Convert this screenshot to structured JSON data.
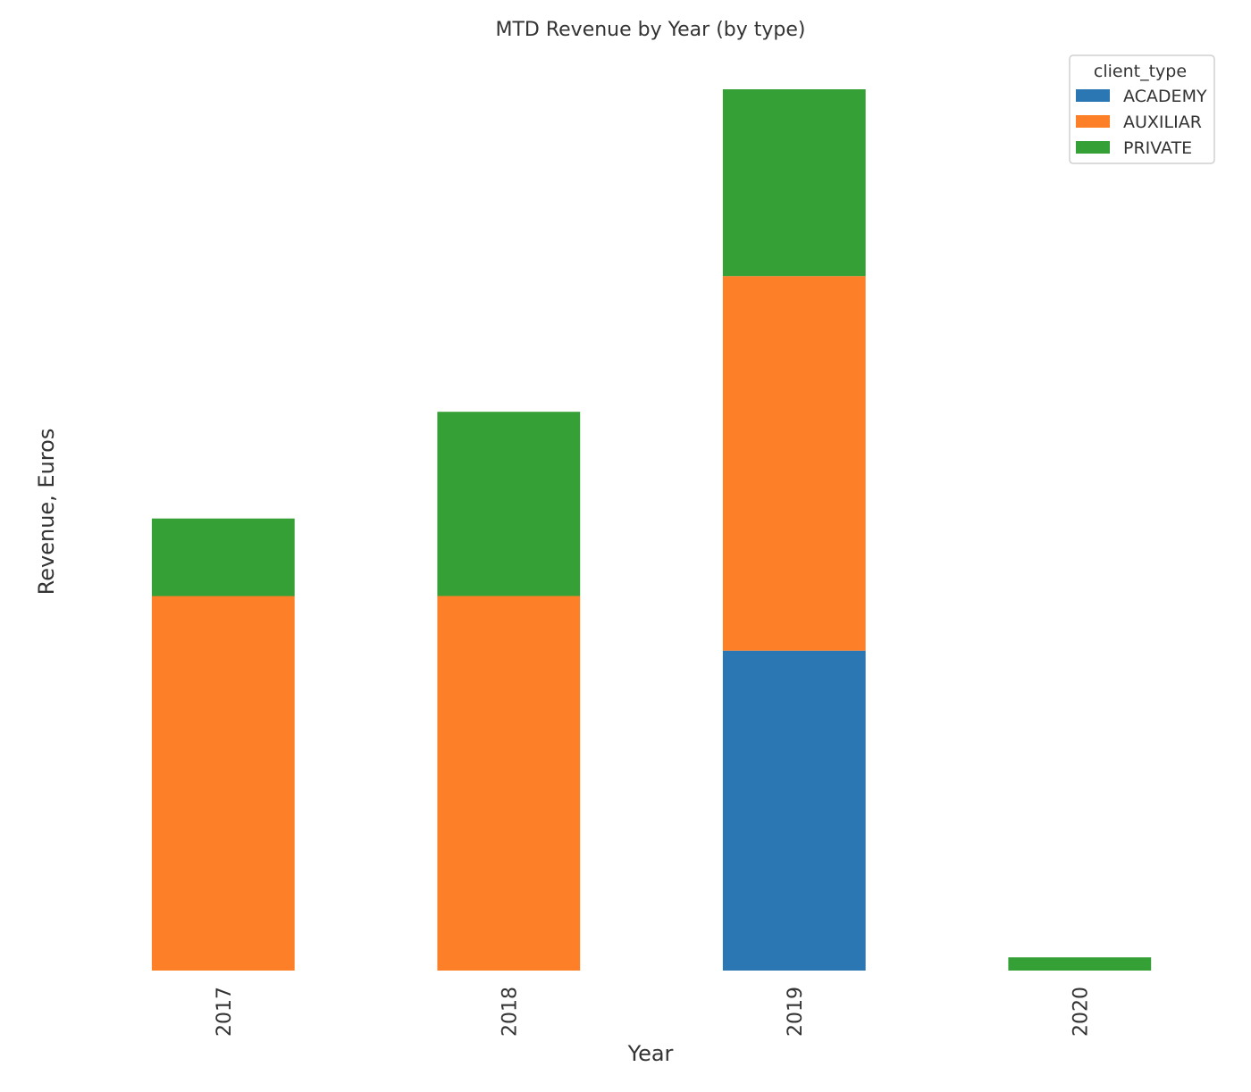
{
  "chart_data": {
    "type": "bar",
    "stacked": true,
    "title": "MTD Revenue by Year (by type)",
    "xlabel": "Year",
    "ylabel": "Revenue, Euros",
    "categories": [
      "2017",
      "2018",
      "2019",
      "2020"
    ],
    "series": [
      {
        "name": "ACADEMY",
        "color": "#2b77b4",
        "values": [
          0,
          0,
          36.3,
          0
        ]
      },
      {
        "name": "AUXILIAR",
        "color": "#fd7f28",
        "values": [
          42.5,
          42.5,
          42.5,
          0
        ]
      },
      {
        "name": "PRIVATE",
        "color": "#35a035",
        "values": [
          8.8,
          20.9,
          21.2,
          1.5
        ]
      }
    ],
    "ylim": [
      0,
      100
    ],
    "grid": false,
    "show_y_ticks": false,
    "legend": {
      "title": "client_type",
      "position": "top-right"
    }
  }
}
